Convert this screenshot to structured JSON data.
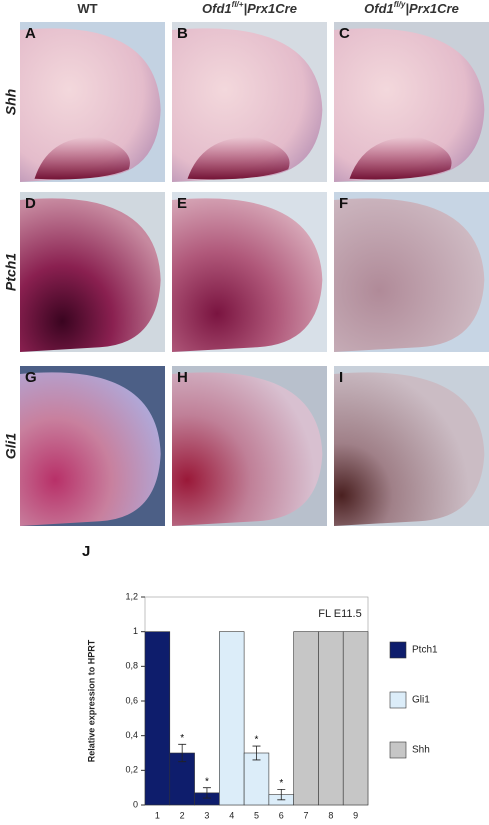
{
  "figure": {
    "columns": [
      {
        "label": "WT"
      },
      {
        "label": "Ofd1",
        "sup": "fl/+",
        "suffix": "|Prx1Cre"
      },
      {
        "label": "Ofd1",
        "sup": "fl/y",
        "suffix": "|Prx1Cre"
      }
    ],
    "rows": [
      "Shh",
      "Ptch1",
      "Gli1"
    ],
    "panel_letters": [
      "A",
      "B",
      "C",
      "D",
      "E",
      "F",
      "G",
      "H",
      "I"
    ],
    "chart_letter": "J"
  },
  "chart_data": {
    "type": "bar",
    "annotation": "FL E11.5",
    "y_label": "Relative expression to HPRT",
    "categories": [
      "1",
      "2",
      "3",
      "4",
      "5",
      "6",
      "7",
      "8",
      "9"
    ],
    "series": [
      {
        "name": "Ptch1",
        "color": "#0e1d6c",
        "values": [
          1,
          0.3,
          0.07,
          null,
          null,
          null,
          null,
          null,
          null
        ],
        "errors": [
          null,
          0.05,
          0.03,
          null,
          null,
          null,
          null,
          null,
          null
        ],
        "significance_labels": [
          null,
          "*",
          "*",
          null,
          null,
          null,
          null,
          null,
          null
        ]
      },
      {
        "name": "Gli1",
        "color": "#dcedf9",
        "values": [
          null,
          null,
          null,
          1,
          0.3,
          0.06,
          null,
          null,
          null
        ],
        "errors": [
          null,
          null,
          null,
          null,
          0.04,
          0.03,
          null,
          null,
          null
        ],
        "significance_labels": [
          null,
          null,
          null,
          null,
          "*",
          "*",
          null,
          null,
          null
        ]
      },
      {
        "name": "Shh",
        "color": "#c6c6c6",
        "values": [
          null,
          null,
          null,
          null,
          null,
          null,
          1,
          1,
          1
        ],
        "errors": [
          null,
          null,
          null,
          null,
          null,
          null,
          null,
          null,
          null
        ],
        "significance_labels": [
          null,
          null,
          null,
          null,
          null,
          null,
          null,
          null,
          null
        ]
      }
    ],
    "ylim": [
      0,
      1.2
    ],
    "yticks": [
      0,
      {
        "value": 0.2,
        "label": "0,2"
      },
      {
        "value": 0.4,
        "label": "0,4"
      },
      {
        "value": 0.6,
        "label": "0,6"
      },
      {
        "value": 0.8,
        "label": "0,8"
      },
      1,
      {
        "value": 1.2,
        "label": "1,2"
      }
    ],
    "legend": "right"
  }
}
